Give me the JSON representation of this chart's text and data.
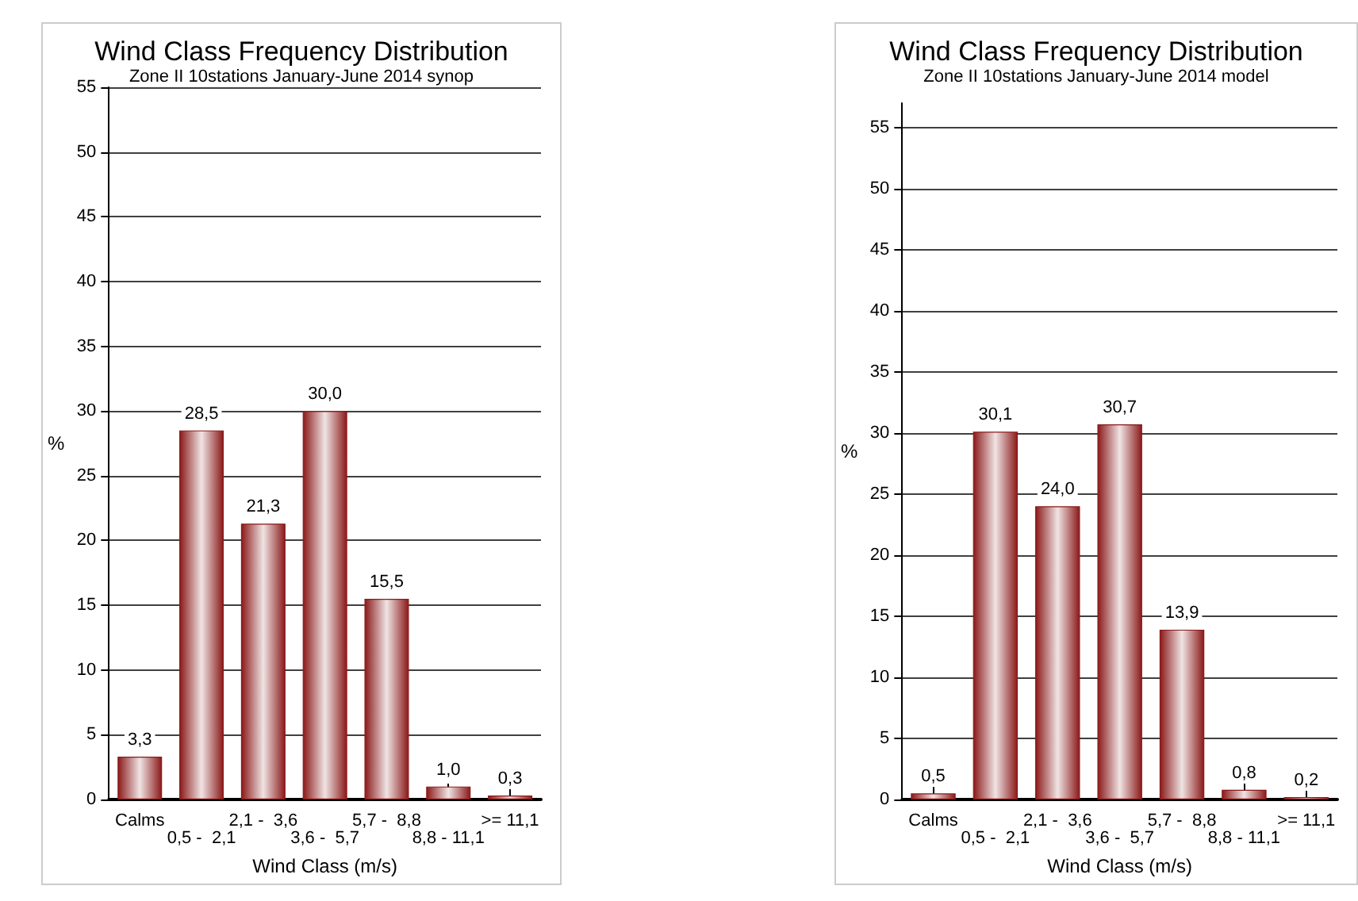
{
  "chart_data": [
    {
      "type": "bar",
      "title": "Wind Class Frequency Distribution",
      "subtitle": "Zone II 10stations January-June 2014 synop",
      "xlabel": "Wind Class (m/s)",
      "ylabel": "%",
      "categories": [
        "Calms",
        "0,5 -  2,1",
        "2,1 -  3,6",
        "3,6 -  5,7",
        "5,7 -  8,8",
        "8,8 - 11,1",
        ">= 11,1"
      ],
      "values": [
        3.3,
        28.5,
        21.3,
        30.0,
        15.5,
        1.0,
        0.3
      ],
      "value_labels": [
        "3,3",
        "28,5",
        "21,3",
        "30,0",
        "15,5",
        "1,0",
        "0,3"
      ],
      "color": "#8b1a1a",
      "ylim": [
        0,
        55
      ],
      "yticks": [
        0,
        5,
        10,
        15,
        20,
        25,
        30,
        35,
        40,
        45,
        50,
        55
      ],
      "grid": "y"
    },
    {
      "type": "bar",
      "title": "Wind Class Frequency Distribution",
      "subtitle": "Zone II 10stations January-June 2014 model",
      "xlabel": "Wind Class (m/s)",
      "ylabel": "%",
      "categories": [
        "Calms",
        "0,5 -  2,1",
        "2,1 -  3,6",
        "3,6 -  5,7",
        "5,7 -  8,8",
        "8,8 - 11,1",
        ">= 11,1"
      ],
      "values": [
        0.5,
        30.1,
        24.0,
        30.7,
        13.9,
        0.8,
        0.2
      ],
      "value_labels": [
        "0,5",
        "30,1",
        "24,0",
        "30,7",
        "13,9",
        "0,8",
        "0,2"
      ],
      "color": "#8b1a1a",
      "ylim": [
        0,
        57
      ],
      "yticks": [
        0,
        5,
        10,
        15,
        20,
        25,
        30,
        35,
        40,
        45,
        50,
        55
      ],
      "grid": "y"
    }
  ]
}
